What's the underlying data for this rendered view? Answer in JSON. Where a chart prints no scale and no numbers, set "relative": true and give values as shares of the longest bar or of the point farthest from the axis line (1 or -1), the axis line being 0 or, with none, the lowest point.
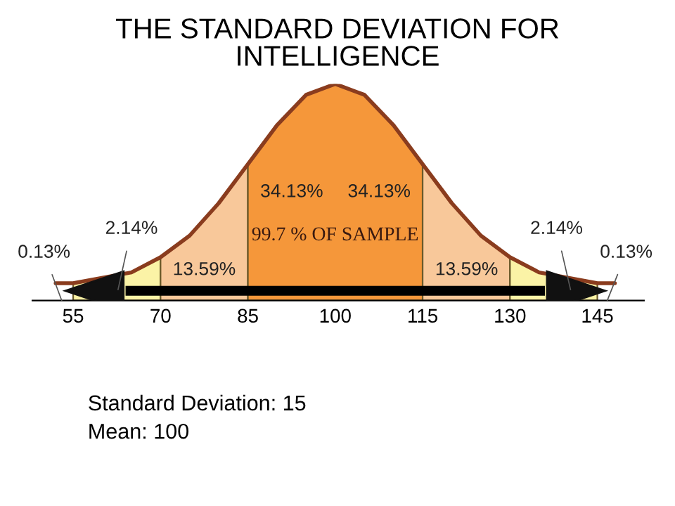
{
  "chart_data": {
    "type": "area",
    "title": "THE STANDARD DEVIATION FOR\nINTELLIGENCE",
    "relative": true,
    "xlim": [
      48,
      153
    ],
    "xticks": [
      55,
      70,
      85,
      100,
      115,
      130,
      145
    ],
    "grid": false,
    "legend": false,
    "series": [
      {
        "color": "#fbf3a6",
        "x": [
          55,
          65,
          70
        ],
        "values": [
          0.08,
          0.13,
          0.2
        ]
      },
      {
        "color": "#f8c89a",
        "x": [
          70,
          75,
          80,
          85
        ],
        "values": [
          0.2,
          0.3,
          0.45,
          0.63
        ]
      },
      {
        "color": "#f5973a",
        "x": [
          85,
          90,
          95,
          100,
          105,
          110,
          115
        ],
        "values": [
          0.63,
          0.81,
          0.95,
          1.0,
          0.95,
          0.81,
          0.63
        ]
      },
      {
        "color": "#f8c89a",
        "x": [
          115,
          120,
          125,
          130
        ],
        "values": [
          0.63,
          0.45,
          0.3,
          0.2
        ]
      },
      {
        "color": "#fbf3a6",
        "x": [
          130,
          135,
          145
        ],
        "values": [
          0.2,
          0.13,
          0.08
        ]
      },
      {
        "type": "line",
        "color": "#8a3c1e",
        "x": [
          52,
          55,
          65,
          70,
          75,
          80,
          85,
          90,
          95,
          100,
          105,
          110,
          115,
          120,
          125,
          130,
          135,
          145,
          148
        ],
        "values": [
          0.08,
          0.08,
          0.13,
          0.2,
          0.3,
          0.45,
          0.63,
          0.81,
          0.95,
          1.0,
          0.95,
          0.81,
          0.63,
          0.45,
          0.3,
          0.2,
          0.13,
          0.08,
          0.08
        ]
      },
      {
        "type": "line",
        "color": "#000000",
        "x": [
          64,
          136
        ],
        "values": [
          0.045,
          0.045
        ]
      }
    ],
    "annotations": [
      "34.13%",
      "34.13%",
      "13.59%",
      "13.59%",
      "2.14%",
      "2.14%",
      "0.13%",
      "0.13%",
      "99.7 % OF SAMPLE",
      "Standard Deviation: 15",
      "Mean: 100"
    ]
  }
}
